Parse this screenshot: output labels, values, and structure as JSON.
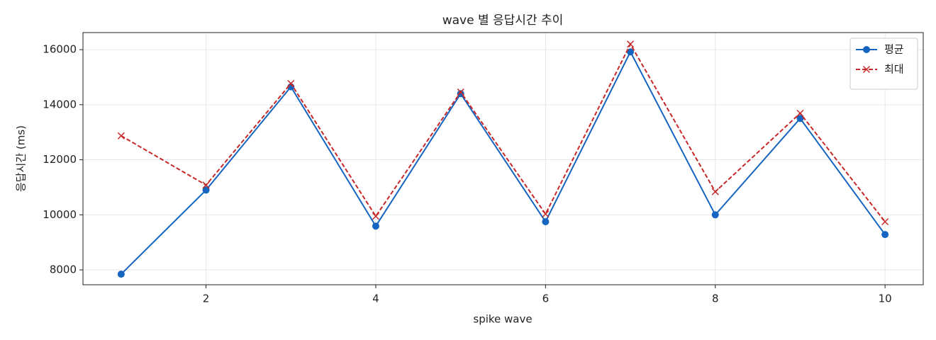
{
  "chart_data": {
    "type": "line",
    "title": "wave 별 응답시간 추이",
    "x_label": "spike wave",
    "y_label": "응답시간 (ms)",
    "x": [
      1,
      2,
      3,
      4,
      5,
      6,
      7,
      8,
      9,
      10
    ],
    "series": [
      {
        "name": "평균",
        "color": "#1565c0",
        "marker": "circle",
        "linestyle": "solid",
        "values": [
          7845,
          10900,
          14650,
          9590,
          14400,
          9750,
          15920,
          10000,
          13500,
          9285
        ]
      },
      {
        "name": "최대",
        "color": "#c62828",
        "marker": "x",
        "linestyle": "dashed",
        "values": [
          12870,
          11080,
          14770,
          9950,
          14460,
          10030,
          16200,
          10840,
          13690,
          9750
        ]
      }
    ],
    "xlim": [
      0.55,
      10.45
    ],
    "xticks": [
      2,
      4,
      6,
      8,
      10
    ],
    "ylim": [
      7460,
      16620
    ],
    "yticks": [
      8000,
      10000,
      12000,
      14000,
      16000
    ],
    "grid": true,
    "legend": "upper right"
  }
}
